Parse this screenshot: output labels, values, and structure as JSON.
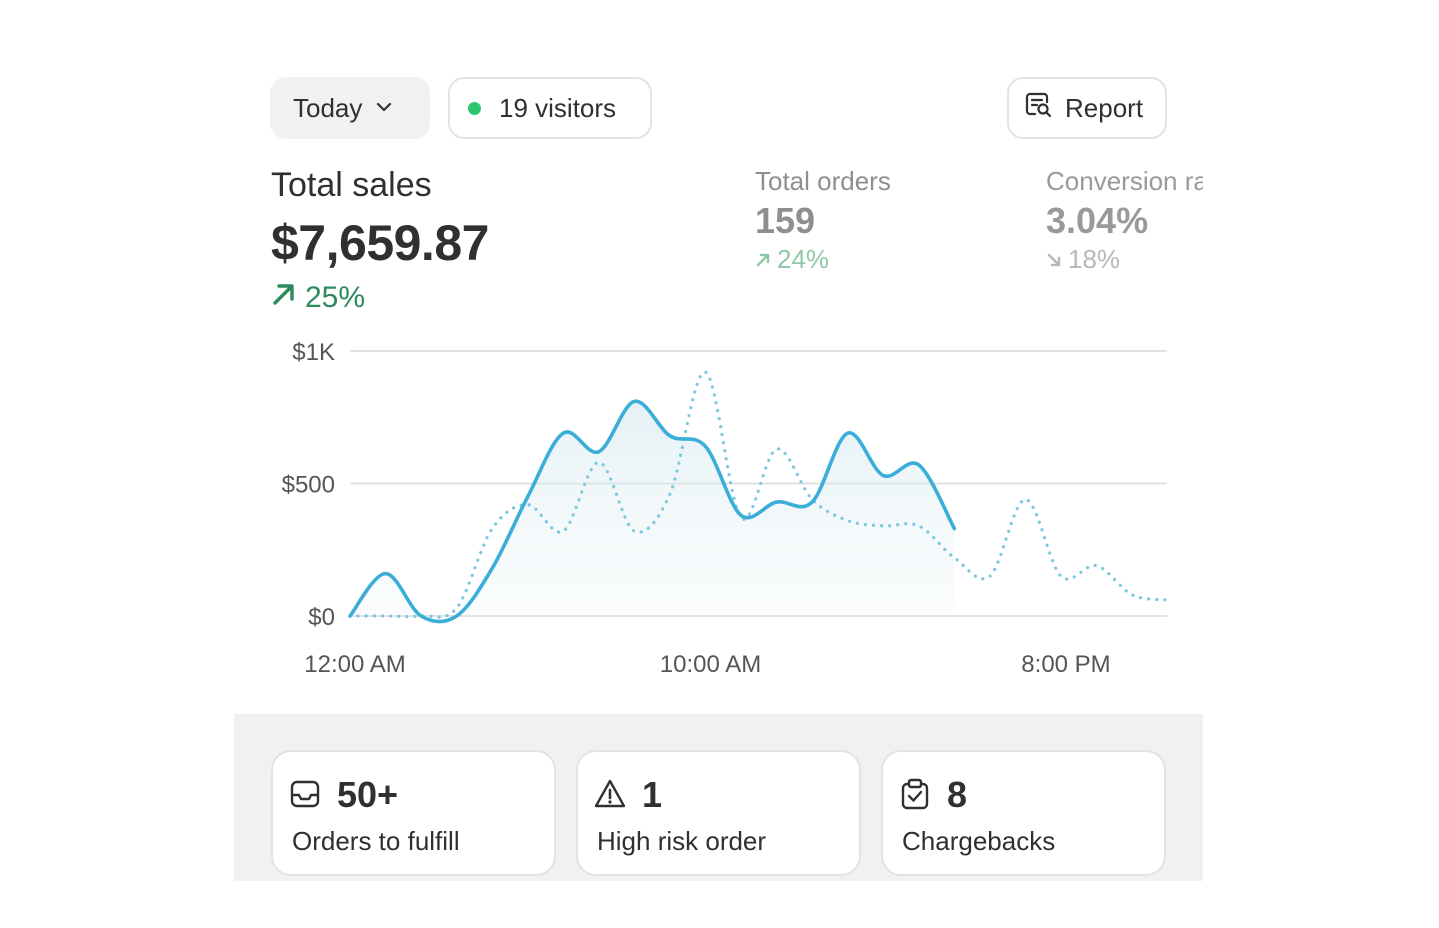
{
  "header": {
    "date_range": "Today",
    "visitors": "19 visitors",
    "report": "Report"
  },
  "metrics": {
    "total_sales": {
      "label": "Total sales",
      "value": "$7,659.87",
      "change": "25%",
      "direction": "up"
    },
    "total_orders": {
      "label": "Total orders",
      "value": "159",
      "change": "24%",
      "direction": "up"
    },
    "conversion": {
      "label": "Conversion rate",
      "value": "3.04%",
      "change": "18%",
      "direction": "down"
    }
  },
  "colors": {
    "positive": "#2d8a5f",
    "live_dot": "#2ac76c",
    "series_today": "#3aaed8",
    "series_comparison": "#7cc8df"
  },
  "chart_data": {
    "type": "line",
    "y_tick_labels": [
      "$0",
      "$500",
      "$1K"
    ],
    "y_ticks": [
      0,
      500,
      1000
    ],
    "x_tick_labels": [
      "12:00 AM",
      "10:00 AM",
      "8:00 PM"
    ],
    "x_ticks": [
      0,
      10,
      20
    ],
    "ylim": [
      0,
      1000
    ],
    "xlim": [
      0,
      23
    ],
    "grid": true,
    "series": [
      {
        "style": "solid",
        "x": [
          0,
          1,
          2,
          3,
          4,
          5,
          6,
          7,
          8,
          9,
          10,
          11,
          12,
          13,
          14,
          15,
          16,
          17
        ],
        "values": [
          0,
          160,
          0,
          0,
          180,
          450,
          690,
          620,
          810,
          680,
          640,
          380,
          430,
          430,
          690,
          530,
          570,
          330
        ]
      },
      {
        "style": "dotted",
        "x": [
          0,
          1,
          2,
          3,
          4,
          5,
          6,
          7,
          8,
          9,
          10,
          11,
          12,
          13,
          14,
          15,
          16,
          17,
          18,
          19,
          20,
          21,
          22,
          23
        ],
        "values": [
          0,
          0,
          0,
          30,
          330,
          420,
          320,
          580,
          320,
          460,
          920,
          370,
          630,
          440,
          360,
          340,
          340,
          220,
          150,
          440,
          150,
          190,
          80,
          60
        ]
      }
    ]
  },
  "tasks": [
    {
      "icon": "inbox-icon",
      "count": "50+",
      "label": "Orders to fulfill"
    },
    {
      "icon": "warning-icon",
      "count": "1",
      "label": "High risk order"
    },
    {
      "icon": "clipboard-check-icon",
      "count": "8",
      "label": "Chargebacks"
    }
  ]
}
